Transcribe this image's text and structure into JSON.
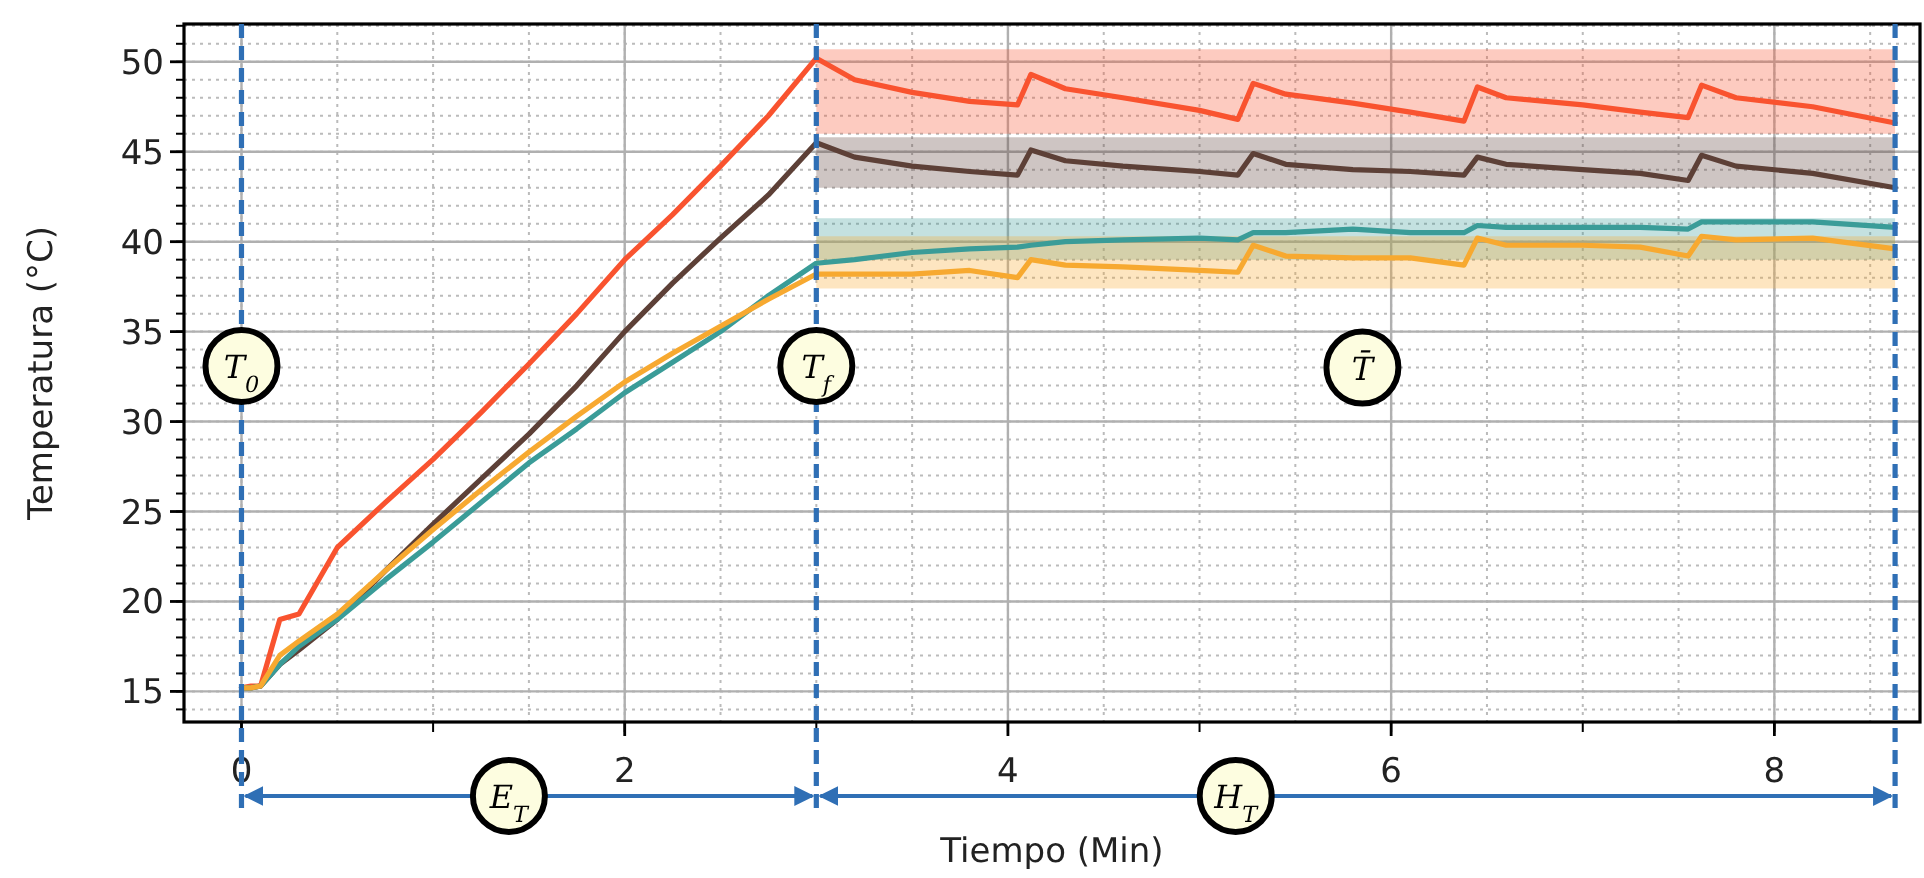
{
  "chart_data": {
    "type": "line",
    "xlabel": "Tiempo (Min)",
    "ylabel": "Temperatura (°C)",
    "x": [
      0,
      0.05,
      0.1,
      0.2,
      0.3,
      0.5,
      0.75,
      1,
      1.25,
      1.5,
      1.75,
      2,
      2.25,
      2.5,
      2.75,
      3,
      3.2,
      3.5,
      3.8,
      4.05,
      4.12,
      4.3,
      4.6,
      5.0,
      5.2,
      5.28,
      5.45,
      5.8,
      6.1,
      6.38,
      6.45,
      6.6,
      7.0,
      7.3,
      7.55,
      7.62,
      7.8,
      8.2,
      8.63
    ],
    "series": [
      {
        "color": "#f9532f",
        "values": [
          15.2,
          15.3,
          15.3,
          19,
          19.3,
          23,
          25.5,
          27.9,
          30.5,
          33.2,
          36,
          39,
          41.5,
          44.2,
          47,
          50.2,
          49,
          48.3,
          47.8,
          47.6,
          49.3,
          48.5,
          48,
          47.3,
          46.8,
          48.8,
          48.2,
          47.7,
          47.2,
          46.7,
          48.6,
          48,
          47.6,
          47.2,
          46.9,
          48.7,
          48,
          47.5,
          46.6
        ],
        "lower": [
          null,
          null,
          null,
          null,
          null,
          null,
          null,
          null,
          null,
          null,
          null,
          null,
          null,
          null,
          null,
          46.0,
          46.0,
          46.0,
          46.0,
          46.0,
          46.0,
          46.0,
          46.0,
          46.0,
          46.0,
          46.0,
          46.0,
          46.0,
          46.0,
          46.0,
          46.0,
          46.0,
          46.0,
          46.0,
          46.0,
          46.0,
          46.0,
          46.0,
          46.0
        ],
        "upper": [
          null,
          null,
          null,
          null,
          null,
          null,
          null,
          null,
          null,
          null,
          null,
          null,
          null,
          null,
          null,
          50.7,
          50.7,
          50.7,
          50.7,
          50.7,
          50.7,
          50.7,
          50.7,
          50.7,
          50.7,
          50.7,
          50.7,
          50.7,
          50.7,
          50.7,
          50.7,
          50.7,
          50.7,
          50.7,
          50.7,
          50.7,
          50.7,
          50.7,
          50.7
        ]
      },
      {
        "color": "#5d4037",
        "values": [
          15.2,
          15.2,
          15.3,
          16.5,
          17.3,
          19,
          21.7,
          24.3,
          26.8,
          29.3,
          32,
          35,
          37.7,
          40.2,
          42.6,
          45.5,
          44.7,
          44.2,
          43.9,
          43.7,
          45.1,
          44.5,
          44.2,
          43.9,
          43.7,
          44.9,
          44.3,
          44.0,
          43.9,
          43.7,
          44.7,
          44.3,
          44.0,
          43.8,
          43.4,
          44.8,
          44.2,
          43.8,
          43.0
        ],
        "lower": [
          null,
          null,
          null,
          null,
          null,
          null,
          null,
          null,
          null,
          null,
          null,
          null,
          null,
          null,
          null,
          43.0,
          43.0,
          43.0,
          43.0,
          43.0,
          43.0,
          43.0,
          43.0,
          43.0,
          43.0,
          43.0,
          43.0,
          43.0,
          43.0,
          43.0,
          43.0,
          43.0,
          43.0,
          43.0,
          43.0,
          43.0,
          43.0,
          43.0,
          43.0
        ],
        "upper": [
          null,
          null,
          null,
          null,
          null,
          null,
          null,
          null,
          null,
          null,
          null,
          null,
          null,
          null,
          null,
          45.8,
          45.8,
          45.8,
          45.8,
          45.8,
          45.8,
          45.8,
          45.8,
          45.8,
          45.8,
          45.8,
          45.8,
          45.8,
          45.8,
          45.8,
          45.8,
          45.8,
          45.8,
          45.8,
          45.8,
          45.8,
          45.8,
          45.8,
          45.8
        ]
      },
      {
        "color": "#3a9c98",
        "values": [
          15.2,
          15.2,
          15.3,
          16.5,
          17.5,
          19,
          21.2,
          23.3,
          25.5,
          27.7,
          29.6,
          31.6,
          33.3,
          35,
          37,
          38.8,
          39.0,
          39.4,
          39.6,
          39.7,
          39.8,
          40.0,
          40.1,
          40.2,
          40.1,
          40.5,
          40.5,
          40.7,
          40.5,
          40.5,
          40.9,
          40.8,
          40.8,
          40.8,
          40.7,
          41.1,
          41.1,
          41.1,
          40.8
        ],
        "lower": [
          null,
          null,
          null,
          null,
          null,
          null,
          null,
          null,
          null,
          null,
          null,
          null,
          null,
          null,
          null,
          39.0,
          39.0,
          39.0,
          39.0,
          39.0,
          39.0,
          39.0,
          39.0,
          39.0,
          39.0,
          39.0,
          39.0,
          39.0,
          39.0,
          39.0,
          39.0,
          39.0,
          39.0,
          39.0,
          39.0,
          39.0,
          39.0,
          39.0,
          39.0
        ],
        "upper": [
          null,
          null,
          null,
          null,
          null,
          null,
          null,
          null,
          null,
          null,
          null,
          null,
          null,
          null,
          null,
          41.3,
          41.3,
          41.3,
          41.3,
          41.3,
          41.3,
          41.3,
          41.3,
          41.3,
          41.3,
          41.3,
          41.3,
          41.3,
          41.3,
          41.3,
          41.3,
          41.3,
          41.3,
          41.3,
          41.3,
          41.3,
          41.3,
          41.3,
          41.3
        ]
      },
      {
        "color": "#f7a930",
        "values": [
          15.2,
          15.2,
          15.3,
          17,
          17.8,
          19.3,
          21.7,
          24,
          26.2,
          28.3,
          30.3,
          32.2,
          33.8,
          35.3,
          36.8,
          38.2,
          38.2,
          38.2,
          38.4,
          38.0,
          39.0,
          38.7,
          38.6,
          38.4,
          38.3,
          39.8,
          39.2,
          39.1,
          39.1,
          38.7,
          40.2,
          39.8,
          39.8,
          39.7,
          39.2,
          40.3,
          40.1,
          40.2,
          39.6
        ],
        "lower": [
          null,
          null,
          null,
          null,
          null,
          null,
          null,
          null,
          null,
          null,
          null,
          null,
          null,
          null,
          null,
          37.4,
          37.4,
          37.4,
          37.4,
          37.4,
          37.4,
          37.4,
          37.4,
          37.4,
          37.4,
          37.4,
          37.4,
          37.4,
          37.4,
          37.4,
          37.4,
          37.4,
          37.4,
          37.4,
          37.4,
          37.4,
          37.4,
          37.4,
          37.4
        ],
        "upper": [
          null,
          null,
          null,
          null,
          null,
          null,
          null,
          null,
          null,
          null,
          null,
          null,
          null,
          null,
          null,
          40.3,
          40.3,
          40.3,
          40.3,
          40.3,
          40.3,
          40.3,
          40.3,
          40.3,
          40.3,
          40.3,
          40.3,
          40.3,
          40.3,
          40.3,
          40.3,
          40.3,
          40.3,
          40.3,
          40.3,
          40.3,
          40.3,
          40.3,
          40.3
        ]
      }
    ],
    "xlim": [
      -0.3,
      8.76
    ],
    "ylim": [
      13.3,
      52.1
    ],
    "xticks": [
      0,
      2,
      4,
      6,
      8
    ],
    "yticks": [
      15,
      20,
      25,
      30,
      35,
      40,
      45,
      50
    ],
    "grid": true,
    "ref_lines": [
      {
        "axis": "x",
        "value": 0,
        "label": "T$_{0}$",
        "color": "#2f6fb5",
        "line_style": "dashed"
      },
      {
        "axis": "x",
        "value": 3,
        "label": "T$_{f}$",
        "color": "#2f6fb5",
        "line_style": "dashed"
      },
      {
        "axis": "x",
        "value": 8.63,
        "color": "#2f6fb5",
        "line_style": "dashed"
      }
    ],
    "annotations": [
      "E$_{T}$",
      "H$_{T}$",
      {
        "text": "T̄",
        "x": 5.85,
        "y": 33
      }
    ]
  }
}
